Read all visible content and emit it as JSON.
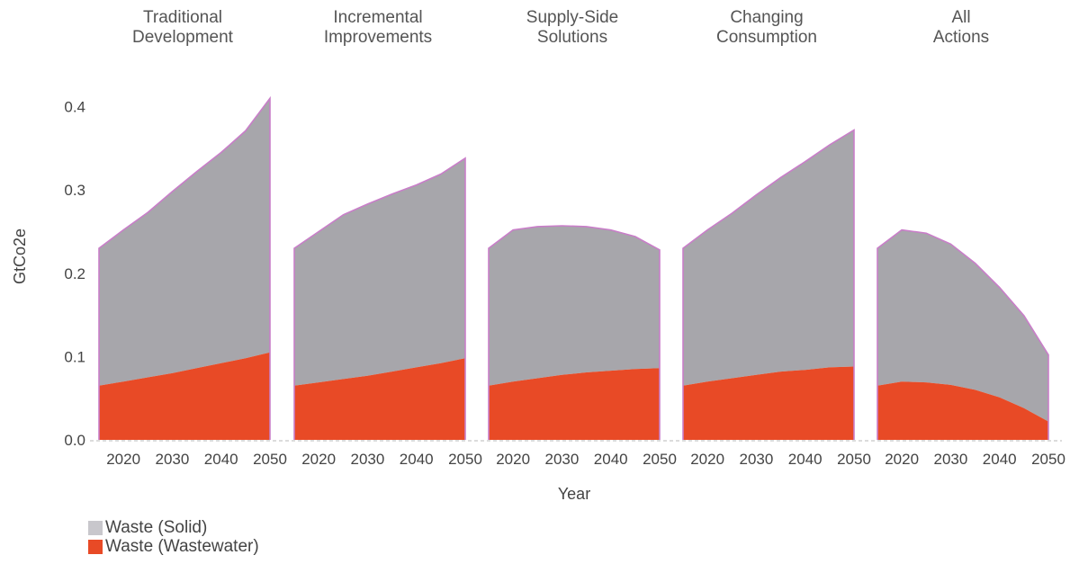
{
  "chart_data": {
    "type": "area",
    "stacked": true,
    "ylabel": "GtCo2e",
    "xlabel": "Year",
    "ylim": [
      0,
      0.42
    ],
    "yticks": [
      "0.0",
      "0.1",
      "0.2",
      "0.3",
      "0.4"
    ],
    "xlim": [
      2015,
      2050
    ],
    "xticks": [
      "2020",
      "2030",
      "2040",
      "2050"
    ],
    "colors": {
      "solid": "#a7a6ab",
      "wastewater": "#e84a26",
      "outline": "#c97ec9",
      "legend_solid": "#c8c7cc"
    },
    "legend": [
      "Waste (Solid)",
      "Waste (Wastewater)"
    ],
    "x": [
      2015,
      2020,
      2025,
      2030,
      2035,
      2040,
      2045,
      2050
    ],
    "panels": [
      {
        "title": [
          "Traditional",
          "Development"
        ],
        "series": [
          {
            "name": "Waste (Wastewater)",
            "values": [
              0.065,
              0.07,
              0.075,
              0.08,
              0.086,
              0.092,
              0.098,
              0.105
            ]
          },
          {
            "name": "Waste (Solid)",
            "values": [
              0.165,
              0.182,
              0.198,
              0.218,
              0.236,
              0.253,
              0.273,
              0.305
            ]
          }
        ]
      },
      {
        "title": [
          "Incremental",
          "Improvements"
        ],
        "series": [
          {
            "name": "Waste (Wastewater)",
            "values": [
              0.065,
              0.069,
              0.073,
              0.077,
              0.082,
              0.087,
              0.092,
              0.098
            ]
          },
          {
            "name": "Waste (Solid)",
            "values": [
              0.165,
              0.181,
              0.197,
              0.206,
              0.213,
              0.219,
              0.227,
              0.24
            ]
          }
        ]
      },
      {
        "title": [
          "Supply-Side",
          "Solutions"
        ],
        "series": [
          {
            "name": "Waste (Wastewater)",
            "values": [
              0.065,
              0.07,
              0.074,
              0.078,
              0.081,
              0.083,
              0.085,
              0.086
            ]
          },
          {
            "name": "Waste (Solid)",
            "values": [
              0.165,
              0.182,
              0.182,
              0.179,
              0.175,
              0.169,
              0.159,
              0.142
            ]
          }
        ]
      },
      {
        "title": [
          "Changing",
          "Consumption"
        ],
        "series": [
          {
            "name": "Waste (Wastewater)",
            "values": [
              0.065,
              0.07,
              0.074,
              0.078,
              0.082,
              0.084,
              0.087,
              0.088
            ]
          },
          {
            "name": "Waste (Solid)",
            "values": [
              0.165,
              0.182,
              0.198,
              0.216,
              0.233,
              0.25,
              0.267,
              0.284
            ]
          }
        ]
      },
      {
        "title": [
          "All",
          "Actions"
        ],
        "series": [
          {
            "name": "Waste (Wastewater)",
            "values": [
              0.065,
              0.07,
              0.069,
              0.066,
              0.06,
              0.051,
              0.038,
              0.022
            ]
          },
          {
            "name": "Waste (Solid)",
            "values": [
              0.165,
              0.182,
              0.179,
              0.169,
              0.152,
              0.132,
              0.111,
              0.08
            ]
          }
        ]
      }
    ]
  }
}
